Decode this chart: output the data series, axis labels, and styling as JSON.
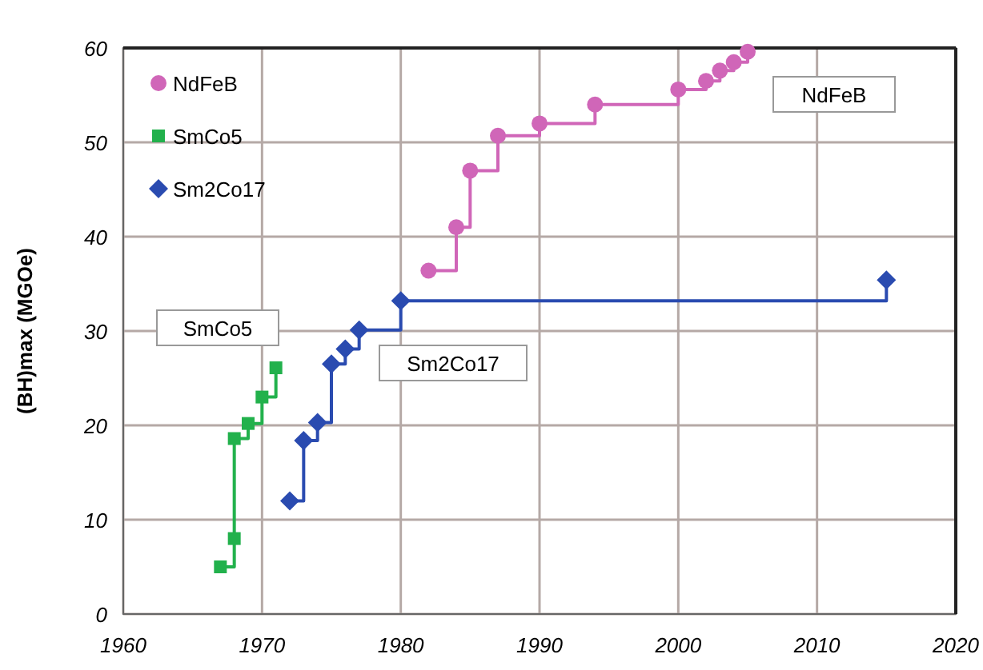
{
  "chart_data": {
    "type": "step",
    "ylabel": "(BH)max (MGOe)",
    "xlim": [
      1960,
      2020
    ],
    "xticks": [
      1960,
      1970,
      1980,
      1990,
      2000,
      2010,
      2020
    ],
    "ylim": [
      0,
      60
    ],
    "yticks": [
      0,
      10,
      20,
      30,
      40,
      50,
      60
    ],
    "grid": true,
    "legend": "top left",
    "line_style": "solid",
    "series": [
      {
        "name": "NdFeB",
        "color": "#d066b8",
        "marker": "circle",
        "x": [
          1982,
          1984,
          1985,
          1987,
          1990,
          1994,
          2000,
          2002,
          2003,
          2004,
          2005
        ],
        "values": [
          36.4,
          41,
          47,
          50.7,
          52,
          54,
          55.6,
          56.5,
          57.6,
          58.5,
          59.6
        ]
      },
      {
        "name": "SmCo5",
        "color": "#22b14c",
        "marker": "square",
        "x": [
          1967,
          1968,
          1968,
          1969,
          1970,
          1971
        ],
        "values": [
          5,
          8,
          18.6,
          20.2,
          23,
          26.1
        ]
      },
      {
        "name": "Sm2Co17",
        "color": "#2a4bb0",
        "marker": "diamond",
        "x": [
          1972,
          1973,
          1974,
          1975,
          1976,
          1977,
          1980,
          2015
        ],
        "values": [
          12,
          18.4,
          20.3,
          26.5,
          28.1,
          30.1,
          33.2,
          35.4
        ]
      }
    ],
    "annotations": [
      "SmCo5",
      "Sm2Co17",
      "NdFeB"
    ]
  }
}
